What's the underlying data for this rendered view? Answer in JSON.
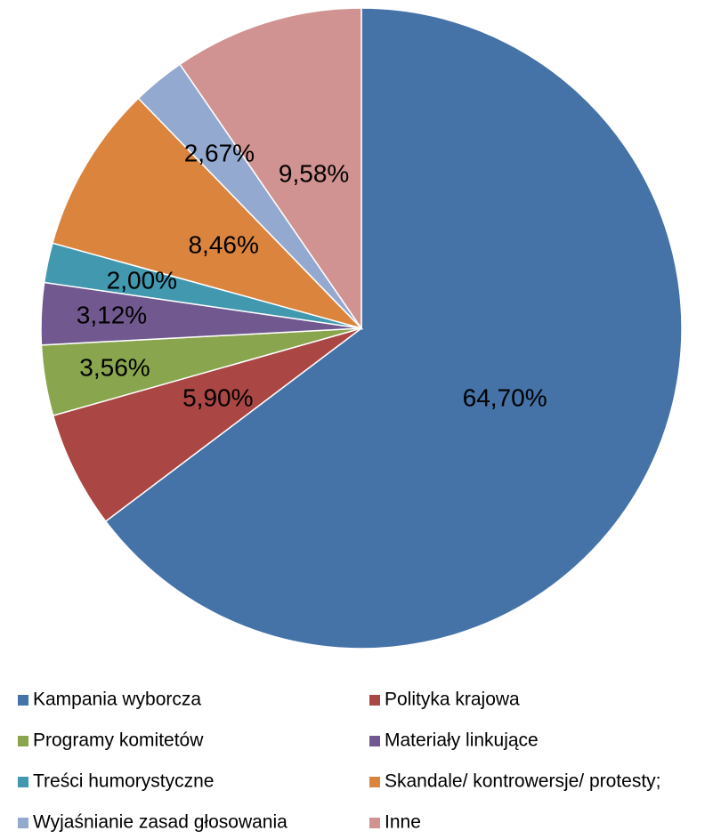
{
  "chart_data": {
    "type": "pie",
    "categories": [
      "Kampania wyborcza",
      "Polityka krajowa",
      "Programy komitetów",
      "Materiały linkujące",
      "Treści humorystyczne",
      "Skandale/ kontrowersje/ protesty;",
      "Wyjaśnianie zasad głosowania",
      "Inne"
    ],
    "values": [
      64.7,
      5.9,
      3.56,
      3.12,
      2.0,
      8.46,
      2.67,
      9.58
    ],
    "value_labels": [
      "64,70%",
      "5,90%",
      "3,56%",
      "3,12%",
      "2,00%",
      "8,46%",
      "2,67%",
      "9,58%"
    ],
    "colors": [
      "#4572a7",
      "#aa4643",
      "#89a54e",
      "#71588f",
      "#4198af",
      "#db843d",
      "#93a9cf",
      "#d19392"
    ],
    "legend": "bottom"
  }
}
